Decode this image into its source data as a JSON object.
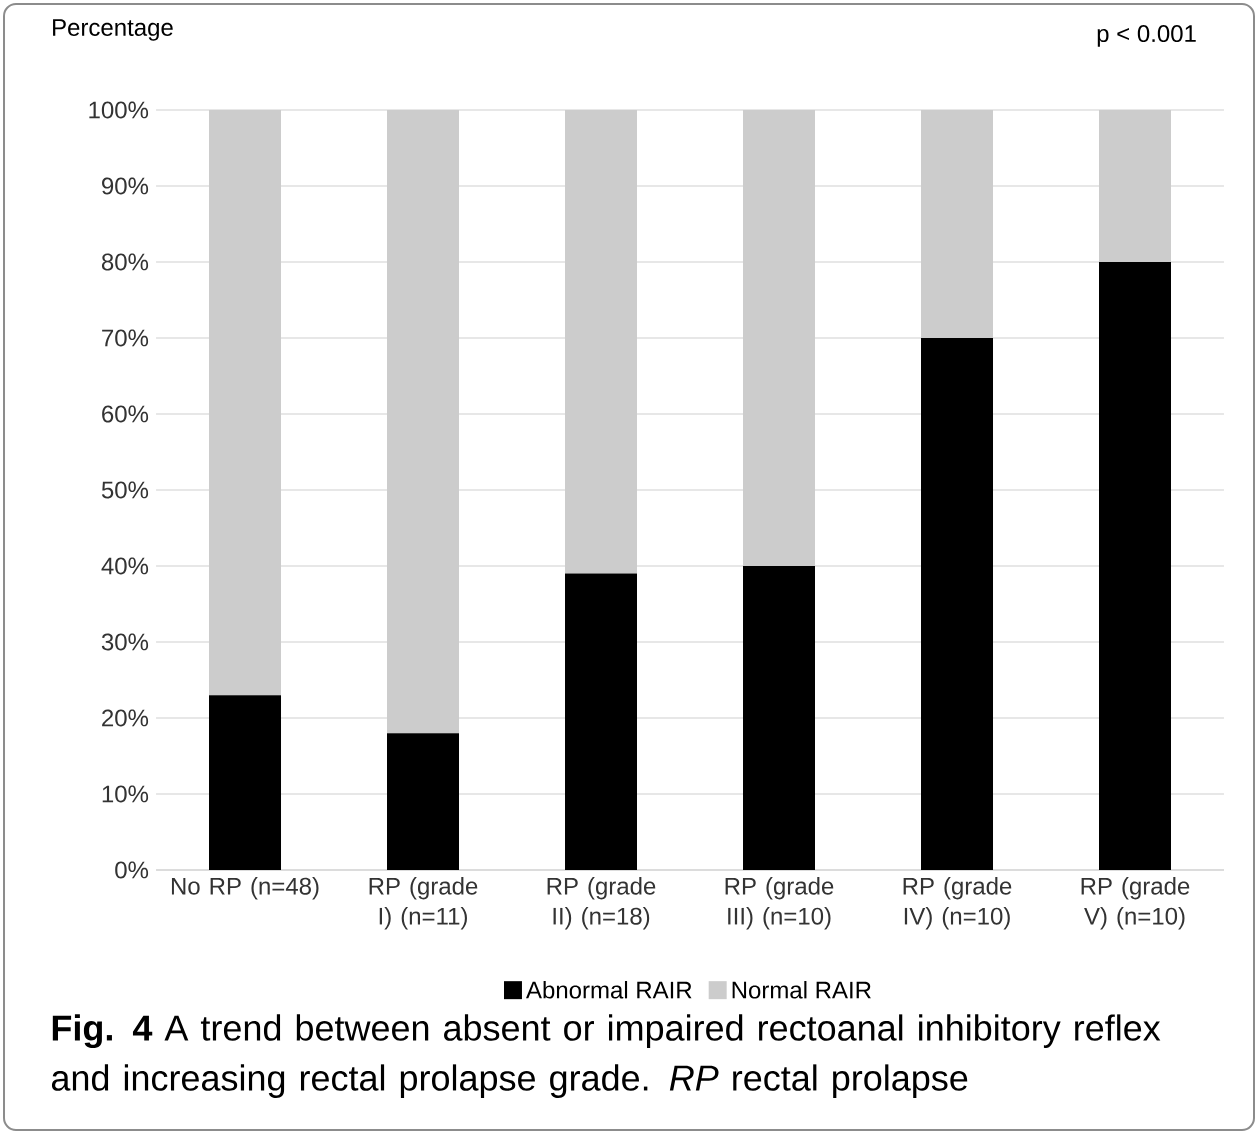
{
  "chart_data": {
    "type": "bar",
    "stacked": true,
    "ylabel": "Percentage",
    "categories": [
      "No RP (n=48)",
      "RP (grade I) (n=11)",
      "RP (grade II) (n=18)",
      "RP (grade III) (n=10)",
      "RP (grade IV) (n=10)",
      "RP (grade V) (n=10)"
    ],
    "series": [
      {
        "name": "Abnormal RAIR",
        "color": "#000000",
        "values": [
          23,
          18,
          39,
          40,
          70,
          80
        ]
      },
      {
        "name": "Normal RAIR",
        "color": "#cccccc",
        "values": [
          77,
          82,
          61,
          60,
          30,
          20
        ]
      }
    ],
    "ylim": [
      0,
      100
    ],
    "yticks": [
      {
        "value": 0,
        "label": "0%"
      },
      {
        "value": 10,
        "label": "10%"
      },
      {
        "value": 20,
        "label": "20%"
      },
      {
        "value": 30,
        "label": "30%"
      },
      {
        "value": 40,
        "label": "40%"
      },
      {
        "value": 50,
        "label": "50%"
      },
      {
        "value": 60,
        "label": "60%"
      },
      {
        "value": 70,
        "label": "70%"
      },
      {
        "value": 80,
        "label": "80%"
      },
      {
        "value": 90,
        "label": "90%"
      },
      {
        "value": 100,
        "label": "100%"
      }
    ],
    "grid": "y",
    "legend": "bottom",
    "annotations": [
      "p < 0.001",
      "**Fig. 4**  A trend between absent or impaired rectoanal inhibitory reflex and increasing rectal prolapse grade. *RP* rectal prolapse"
    ]
  }
}
